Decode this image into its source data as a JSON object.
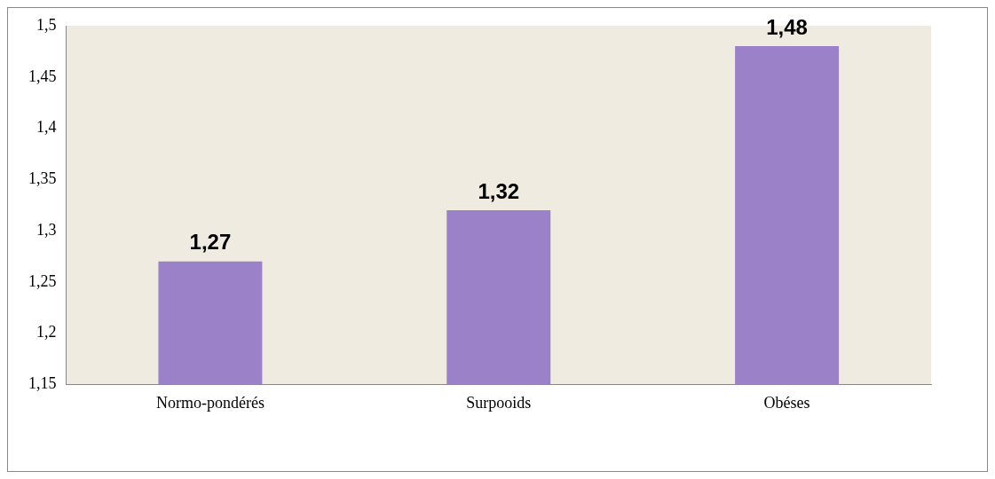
{
  "chart_data": {
    "type": "bar",
    "categories": [
      "Normo-pondérés",
      "Surpooids",
      "Obéses"
    ],
    "values": [
      1.27,
      1.32,
      1.48
    ],
    "color": "#9b82c8",
    "value_labels": [
      "1,27",
      "1,32",
      "1,48"
    ],
    "ylim": [
      1.15,
      1.5
    ],
    "yticks": [
      {
        "value": 1.15,
        "label": "1,15"
      },
      {
        "value": 1.2,
        "label": "1,2"
      },
      {
        "value": 1.25,
        "label": "1,25"
      },
      {
        "value": 1.3,
        "label": "1,3"
      },
      {
        "value": 1.35,
        "label": "1,35"
      },
      {
        "value": 1.4,
        "label": "1,4"
      },
      {
        "value": 1.45,
        "label": "1,45"
      },
      {
        "value": 1.5,
        "label": "1,5"
      }
    ],
    "grid": false,
    "legend": false
  }
}
